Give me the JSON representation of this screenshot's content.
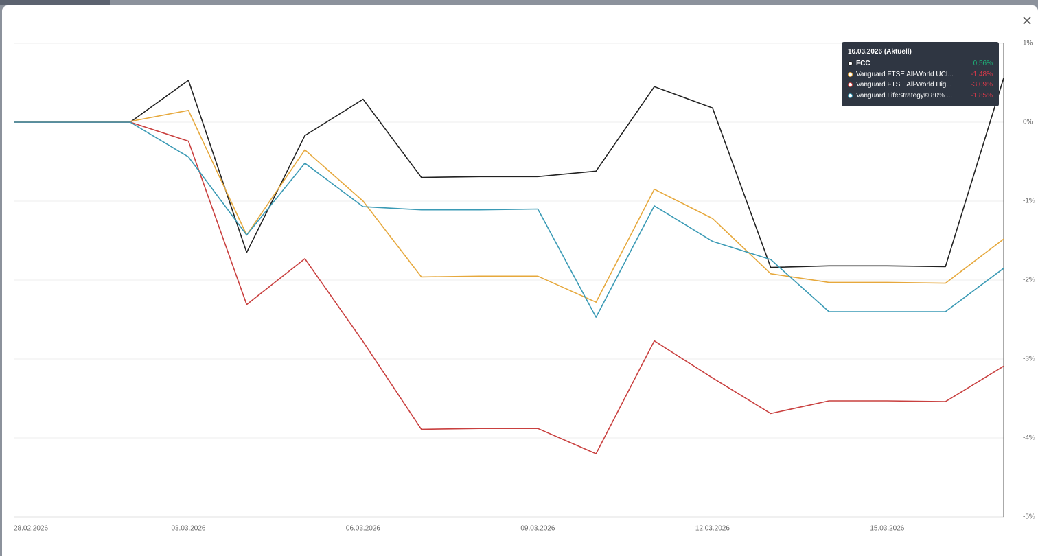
{
  "chart_data": {
    "type": "line",
    "tooltip_title": "16.03.2026 (Aktuell)",
    "categories": [
      "28.02.2026",
      null,
      null,
      "03.03.2026",
      null,
      null,
      "06.03.2026",
      null,
      null,
      "09.03.2026",
      null,
      null,
      "12.03.2026",
      null,
      null,
      "15.03.2026",
      null,
      null
    ],
    "series": [
      {
        "name": "FCC",
        "color": "#222222",
        "values": [
          0,
          0,
          0,
          0.53,
          -1.65,
          -0.17,
          0.29,
          -0.7,
          -0.69,
          -0.69,
          -0.62,
          0.45,
          0.18,
          -1.84,
          -1.82,
          -1.82,
          -1.83,
          0.56
        ],
        "value_labels": [
          null,
          null,
          null,
          null,
          null,
          null,
          null,
          null,
          null,
          null,
          null,
          null,
          null,
          null,
          null,
          null,
          null,
          "0,56%"
        ]
      },
      {
        "name": "Vanguard FTSE All-World UCI...",
        "color": "#e6a83c",
        "values": [
          0,
          0.01,
          0.01,
          0.15,
          -1.43,
          -0.35,
          -1.0,
          -1.96,
          -1.95,
          -1.95,
          -2.28,
          -0.85,
          -1.22,
          -1.92,
          -2.03,
          -2.03,
          -2.04,
          -1.48
        ],
        "value_labels": [
          null,
          null,
          null,
          null,
          null,
          null,
          null,
          null,
          null,
          null,
          null,
          null,
          null,
          null,
          null,
          null,
          null,
          "-1,48%"
        ]
      },
      {
        "name": "Vanguard FTSE All-World Hig...",
        "color": "#c9403f",
        "values": [
          0,
          0,
          0,
          -0.24,
          -2.31,
          -1.73,
          -2.78,
          -3.89,
          -3.88,
          -3.88,
          -4.2,
          -2.77,
          -3.24,
          -3.69,
          -3.53,
          -3.53,
          -3.54,
          -3.09
        ],
        "value_labels": [
          null,
          null,
          null,
          null,
          null,
          null,
          null,
          null,
          null,
          null,
          null,
          null,
          null,
          null,
          null,
          null,
          null,
          "-3,09%"
        ]
      },
      {
        "name": "Vanguard LifeStrategy® 80% ...",
        "color": "#3a9ab5",
        "values": [
          0,
          0,
          0,
          -0.44,
          -1.43,
          -0.52,
          -1.07,
          -1.11,
          -1.11,
          -1.1,
          -2.47,
          -1.06,
          -1.51,
          -1.74,
          -2.4,
          -2.4,
          -2.4,
          -1.85
        ],
        "value_labels": [
          null,
          null,
          null,
          null,
          null,
          null,
          null,
          null,
          null,
          null,
          null,
          null,
          null,
          null,
          null,
          null,
          null,
          "-1,85%"
        ]
      }
    ],
    "ylim": [
      -5,
      1
    ],
    "yticks": [
      {
        "value": 1,
        "label": "1%"
      },
      {
        "value": 0,
        "label": "0%"
      },
      {
        "value": -1,
        "label": "-1%"
      },
      {
        "value": -2,
        "label": "-2%"
      },
      {
        "value": -3,
        "label": "-3%"
      },
      {
        "value": -4,
        "label": "-4%"
      },
      {
        "value": -5,
        "label": "-5%"
      }
    ],
    "grid": true,
    "positive_color": "#1db47a",
    "negative_color": "#e0394a"
  }
}
